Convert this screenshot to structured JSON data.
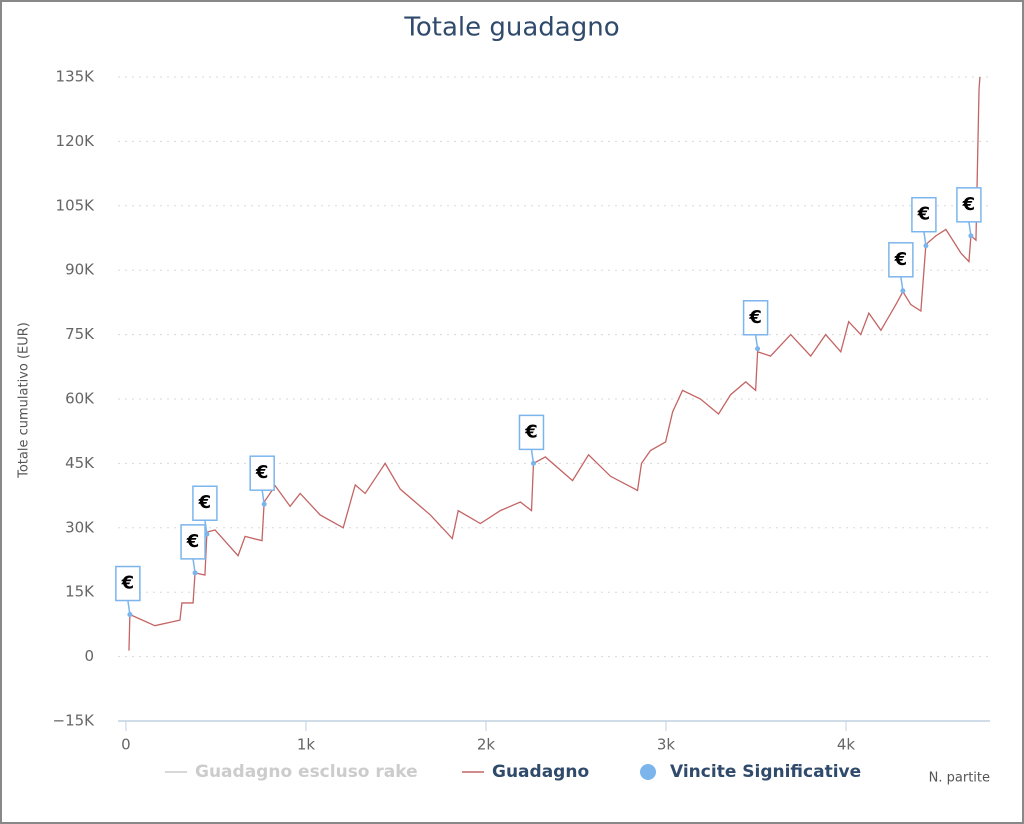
{
  "chart_data": {
    "type": "line",
    "title": "Totale guadagno",
    "y_axis_title": "Totale cumulativo (EUR)",
    "x_axis_title": "N. partite",
    "xlim": [
      -44,
      4800
    ],
    "ylim": [
      -15000,
      135000
    ],
    "xticks": [
      0,
      {
        "value": 1000,
        "label": "1k"
      },
      {
        "value": 2000,
        "label": "2k"
      },
      {
        "value": 3000,
        "label": "3k"
      },
      {
        "value": 4000,
        "label": "4k"
      }
    ],
    "yticks": [
      {
        "value": -15000,
        "label": "−15K"
      },
      0,
      {
        "value": 15000,
        "label": "15K"
      },
      {
        "value": 30000,
        "label": "30K"
      },
      {
        "value": 45000,
        "label": "45K"
      },
      {
        "value": 60000,
        "label": "60K"
      },
      {
        "value": 75000,
        "label": "75K"
      },
      {
        "value": 90000,
        "label": "90K"
      },
      {
        "value": 105000,
        "label": "105K"
      },
      {
        "value": 120000,
        "label": "120K"
      },
      {
        "value": 135000,
        "label": "135K"
      }
    ],
    "grid": true,
    "series": [
      {
        "name": "Guadagno escluso rake",
        "color": "#cccccc",
        "visible": false
      },
      {
        "name": "Guadagno",
        "color": "#c46464",
        "x": [
          17,
          22,
          161,
          300,
          311,
          373,
          384,
          439,
          450,
          495,
          623,
          662,
          756,
          768,
          829,
          912,
          968,
          1079,
          1207,
          1274,
          1329,
          1440,
          1524,
          1691,
          1813,
          1846,
          1969,
          2080,
          2191,
          2253,
          2264,
          2330,
          2481,
          2570,
          2692,
          2842,
          2864,
          2914,
          2998,
          3037,
          3092,
          3192,
          3292,
          3359,
          3443,
          3498,
          3509,
          3581,
          3693,
          3804,
          3887,
          3971,
          4015,
          4082,
          4127,
          4194,
          4277,
          4316,
          4360,
          4416,
          4444,
          4499,
          4555,
          4638,
          4683,
          4694,
          4722,
          4739,
          4744
        ],
        "values": [
          1400,
          9800,
          7200,
          8500,
          12500,
          12500,
          19500,
          19000,
          29000,
          29500,
          23500,
          28000,
          27000,
          36000,
          39800,
          35000,
          38000,
          33000,
          30000,
          40000,
          38000,
          45000,
          39000,
          33000,
          27500,
          34000,
          31000,
          34000,
          36000,
          34000,
          45000,
          46500,
          41000,
          47000,
          42000,
          38700,
          45000,
          48000,
          50000,
          57000,
          62000,
          60000,
          56500,
          61000,
          64000,
          62000,
          71000,
          70000,
          75000,
          70000,
          75000,
          71000,
          78000,
          75000,
          80000,
          76000,
          82000,
          85000,
          82000,
          80500,
          96000,
          98000,
          99500,
          94000,
          92000,
          98000,
          97000,
          132000,
          135000
        ]
      },
      {
        "name": "Vincite Significative",
        "color": "#7cb5ec",
        "flag_label": "€",
        "x": [
          22,
          384,
          450,
          768,
          2264,
          3509,
          4316,
          4444,
          4694
        ],
        "values": [
          9800,
          19500,
          28500,
          35500,
          45000,
          71700,
          85200,
          95700,
          98000
        ]
      }
    ]
  }
}
